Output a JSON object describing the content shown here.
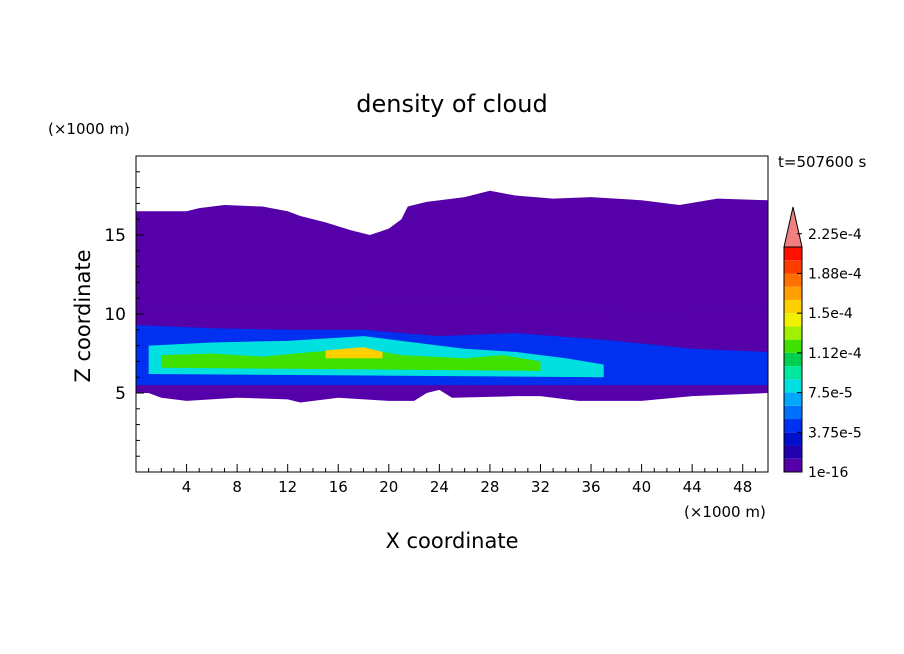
{
  "chart_data": {
    "type": "heatmap",
    "title": "density of cloud",
    "xlabel": "X coordinate",
    "ylabel": "Z coordinate",
    "x_unit": "(×1000 m)",
    "y_unit": "(×1000 m)",
    "time_label": "t=507600 s",
    "xlim": [
      0,
      50
    ],
    "ylim": [
      0,
      20
    ],
    "x_ticks": [
      4,
      8,
      12,
      16,
      20,
      24,
      28,
      32,
      36,
      40,
      44,
      48
    ],
    "y_ticks": [
      5,
      10,
      15
    ],
    "grid": false,
    "colorbar": {
      "labels": [
        "1e-16",
        "3.75e-5",
        "7.5e-5",
        "1.12e-4",
        "1.5e-4",
        "1.88e-4",
        "2.25e-4"
      ],
      "colors": [
        "#5500a8",
        "#2200b0",
        "#0010cc",
        "#0030f0",
        "#0070ff",
        "#00a8ff",
        "#00e0e0",
        "#00e8a0",
        "#00d050",
        "#40e000",
        "#a0f000",
        "#f0f000",
        "#ffd000",
        "#ffa000",
        "#ff7000",
        "#ff3c00",
        "#ff1000",
        "#f08080"
      ],
      "extend": "max"
    },
    "cloud_top_km": [
      [
        0,
        16.5
      ],
      [
        4,
        16.5
      ],
      [
        5,
        16.7
      ],
      [
        7,
        16.9
      ],
      [
        10,
        16.8
      ],
      [
        12,
        16.5
      ],
      [
        13,
        16.2
      ],
      [
        15,
        15.8
      ],
      [
        17,
        15.3
      ],
      [
        18.5,
        15.0
      ],
      [
        20,
        15.4
      ],
      [
        21,
        16.0
      ],
      [
        21.5,
        16.8
      ],
      [
        23,
        17.1
      ],
      [
        26,
        17.4
      ],
      [
        28,
        17.8
      ],
      [
        30,
        17.5
      ],
      [
        33,
        17.3
      ],
      [
        36,
        17.4
      ],
      [
        40,
        17.2
      ],
      [
        43,
        16.9
      ],
      [
        46,
        17.3
      ],
      [
        50,
        17.2
      ]
    ],
    "cloud_base_km": [
      [
        0,
        5.0
      ],
      [
        1,
        5.0
      ],
      [
        2,
        4.7
      ],
      [
        4,
        4.5
      ],
      [
        8,
        4.7
      ],
      [
        12,
        4.6
      ],
      [
        13,
        4.4
      ],
      [
        16,
        4.7
      ],
      [
        20,
        4.5
      ],
      [
        22,
        4.5
      ],
      [
        23,
        5.0
      ],
      [
        24,
        5.2
      ],
      [
        25,
        4.7
      ],
      [
        30,
        4.8
      ],
      [
        32,
        4.8
      ],
      [
        35,
        4.5
      ],
      [
        40,
        4.5
      ],
      [
        44,
        4.8
      ],
      [
        50,
        5.0
      ]
    ],
    "density_layers": [
      {
        "value": "1e-16",
        "top": [
          [
            0,
            10.5
          ],
          [
            10,
            10.2
          ],
          [
            20,
            10.8
          ],
          [
            30,
            10.6
          ],
          [
            40,
            10.0
          ],
          [
            50,
            10.4
          ]
        ],
        "base": [
          [
            0,
            5.2
          ],
          [
            50,
            5.2
          ]
        ]
      },
      {
        "value": "3.75e-5",
        "top": [
          [
            0,
            9.3
          ],
          [
            6,
            9.1
          ],
          [
            12,
            9.0
          ],
          [
            18,
            9.0
          ],
          [
            24,
            8.6
          ],
          [
            30,
            8.8
          ],
          [
            38,
            8.3
          ],
          [
            44,
            7.8
          ],
          [
            50,
            7.6
          ]
        ],
        "base": [
          [
            0,
            5.5
          ],
          [
            50,
            5.5
          ]
        ]
      },
      {
        "value": "7.5e-5",
        "top": [
          [
            1,
            8.0
          ],
          [
            6,
            8.2
          ],
          [
            12,
            8.3
          ],
          [
            18,
            8.6
          ],
          [
            22,
            8.2
          ],
          [
            26,
            7.8
          ],
          [
            30,
            7.6
          ],
          [
            34,
            7.2
          ],
          [
            37,
            6.8
          ]
        ],
        "base": [
          [
            1,
            6.2
          ],
          [
            37,
            6.0
          ]
        ]
      },
      {
        "value": "1.12e-4",
        "top": [
          [
            2,
            7.4
          ],
          [
            6,
            7.5
          ],
          [
            10,
            7.3
          ],
          [
            14,
            7.6
          ],
          [
            18,
            7.8
          ],
          [
            21,
            7.4
          ],
          [
            26,
            7.2
          ],
          [
            29,
            7.4
          ],
          [
            32,
            7.0
          ]
        ],
        "base": [
          [
            2,
            6.6
          ],
          [
            32,
            6.4
          ]
        ]
      },
      {
        "value": "1.5e-4",
        "top": [
          [
            15,
            7.7
          ],
          [
            18,
            7.9
          ],
          [
            19.5,
            7.6
          ]
        ],
        "base": [
          [
            15,
            7.2
          ],
          [
            19.5,
            7.2
          ]
        ]
      }
    ]
  }
}
